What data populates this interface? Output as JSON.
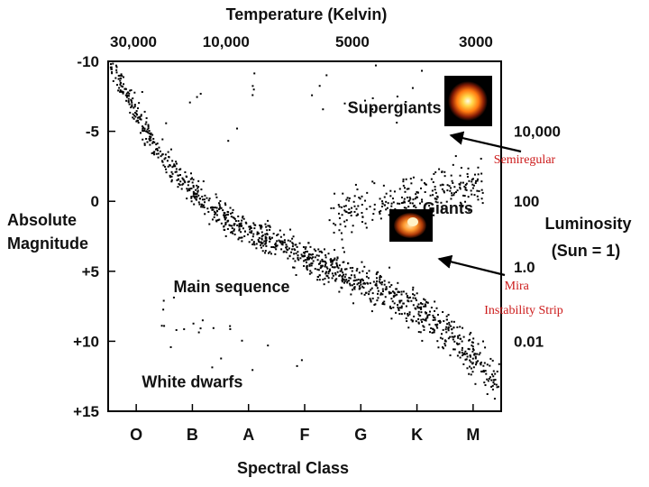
{
  "chart_data": {
    "type": "scatter",
    "title": "Temperature  (Kelvin)",
    "xlabel": "Spectral Class",
    "ylabel": "Absolute Magnitude",
    "y2label": "Luminosity (Sun = 1)",
    "y2label_lines": [
      "Luminosity",
      "(Sun = 1)"
    ],
    "ylabel_lines": [
      "Absolute",
      "Magnitude"
    ],
    "spectral_classes": [
      "O",
      "B",
      "A",
      "F",
      "G",
      "K",
      "M"
    ],
    "x_range": [
      0,
      7
    ],
    "ylim": [
      -10,
      15
    ],
    "temperature_ticks": [
      {
        "label": "30,000",
        "x": 0.45
      },
      {
        "label": "10,000",
        "x": 2.1
      },
      {
        "label": "5000",
        "x": 4.35
      },
      {
        "label": "3000",
        "x": 6.55
      }
    ],
    "magnitude_ticks": [
      {
        "label": "-10",
        "value": -10
      },
      {
        "label": "-5",
        "value": -5
      },
      {
        "label": "0",
        "value": 0
      },
      {
        "label": "+5",
        "value": 5
      },
      {
        "label": "+10",
        "value": 10
      },
      {
        "label": "+15",
        "value": 15
      }
    ],
    "luminosity_ticks": [
      {
        "label": "10,000",
        "value": -5
      },
      {
        "label": "100",
        "value": 0
      },
      {
        "label": "1.0",
        "value": 4.7
      },
      {
        "label": "0.01",
        "value": 10
      }
    ],
    "region_labels": [
      {
        "label": "Supergiants",
        "x": 5.1,
        "y": -6.3
      },
      {
        "label": "Giants",
        "x": 6.05,
        "y": 0.9
      },
      {
        "label": "Main sequence",
        "x": 2.2,
        "y": 6.5
      },
      {
        "label": "White dwarfs",
        "x": 1.5,
        "y": 13.3
      }
    ],
    "main_sequence": [
      {
        "x": 0.05,
        "y": -9.8
      },
      {
        "x": 0.4,
        "y": -7.0
      },
      {
        "x": 0.85,
        "y": -3.8
      },
      {
        "x": 1.3,
        "y": -1.5
      },
      {
        "x": 1.8,
        "y": 0.3
      },
      {
        "x": 2.3,
        "y": 1.8
      },
      {
        "x": 2.9,
        "y": 2.8
      },
      {
        "x": 3.4,
        "y": 3.8
      },
      {
        "x": 4.0,
        "y": 4.8
      },
      {
        "x": 4.6,
        "y": 5.9
      },
      {
        "x": 5.2,
        "y": 7.0
      },
      {
        "x": 5.7,
        "y": 8.5
      },
      {
        "x": 6.2,
        "y": 10.0
      },
      {
        "x": 6.6,
        "y": 11.3
      },
      {
        "x": 6.95,
        "y": 13.0
      }
    ],
    "giant_branch": [
      {
        "x": 4.0,
        "y": 1.0
      },
      {
        "x": 4.6,
        "y": 0.5
      },
      {
        "x": 5.2,
        "y": 0.0
      },
      {
        "x": 5.8,
        "y": -0.6
      },
      {
        "x": 6.3,
        "y": -1.0
      },
      {
        "x": 6.7,
        "y": -1.1
      }
    ],
    "supergiant_branch": [
      {
        "x": 0.4,
        "y": -8.5
      },
      {
        "x": 1.5,
        "y": -8.0
      },
      {
        "x": 2.5,
        "y": -7.5
      },
      {
        "x": 3.5,
        "y": -7.8
      },
      {
        "x": 4.5,
        "y": -7.6
      },
      {
        "x": 5.5,
        "y": -7.3
      },
      {
        "x": 6.3,
        "y": -6.8
      }
    ]
  },
  "annotations": {
    "semiregular": {
      "label": "Semiregular",
      "color": "#cc1a1a"
    },
    "mira_lines": [
      "Mira",
      "Instability Strip"
    ],
    "mira_color": "#cc1a1a"
  },
  "thumbnails": {
    "supergiant": {
      "name": "supergiant-star-image"
    },
    "giant": {
      "name": "giant-star-image"
    }
  }
}
